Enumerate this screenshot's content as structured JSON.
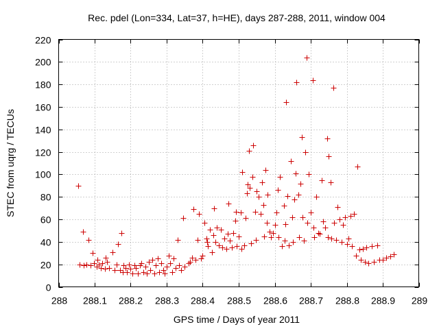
{
  "chart_data": {
    "type": "scatter",
    "title": "Rec. pdel (Lon=334, Lat=37, h=HE), days 287-288, 2011, window 004",
    "xlabel": "GPS time / Days of year 2011",
    "ylabel": "STEC from uqrg / TECUs",
    "xlim": [
      288,
      289
    ],
    "ylim": [
      0,
      220
    ],
    "xticks": [
      288,
      288.1,
      288.2,
      288.3,
      288.4,
      288.5,
      288.6,
      288.7,
      288.8,
      288.9,
      289
    ],
    "xtick_labels": [
      "288",
      "288.1",
      "288.2",
      "288.3",
      "288.4",
      "288.5",
      "288.6",
      "288.7",
      "288.8",
      "288.9",
      "289"
    ],
    "yticks": [
      0,
      20,
      40,
      60,
      80,
      100,
      120,
      140,
      160,
      180,
      200,
      220
    ],
    "ytick_labels": [
      "0",
      "20",
      "40",
      "60",
      "80",
      "100",
      "120",
      "140",
      "160",
      "180",
      "200",
      "220"
    ],
    "grid": true,
    "marker": "+",
    "color": "#cc0000",
    "points": [
      [
        288.055,
        90
      ],
      [
        288.058,
        20
      ],
      [
        288.068,
        49
      ],
      [
        288.07,
        19
      ],
      [
        288.078,
        20
      ],
      [
        288.082,
        42
      ],
      [
        288.088,
        19
      ],
      [
        288.095,
        30
      ],
      [
        288.098,
        21
      ],
      [
        288.105,
        18
      ],
      [
        288.108,
        24
      ],
      [
        288.112,
        20
      ],
      [
        288.118,
        17
      ],
      [
        288.12,
        21
      ],
      [
        288.128,
        16
      ],
      [
        288.13,
        26
      ],
      [
        288.135,
        22
      ],
      [
        288.14,
        17
      ],
      [
        288.15,
        31
      ],
      [
        288.155,
        15
      ],
      [
        288.16,
        20
      ],
      [
        288.165,
        38
      ],
      [
        288.17,
        15
      ],
      [
        288.175,
        48
      ],
      [
        288.178,
        13
      ],
      [
        288.18,
        19
      ],
      [
        288.185,
        17
      ],
      [
        288.19,
        13
      ],
      [
        288.195,
        20
      ],
      [
        288.2,
        16
      ],
      [
        288.205,
        12
      ],
      [
        288.21,
        19
      ],
      [
        288.215,
        17
      ],
      [
        288.22,
        12
      ],
      [
        288.225,
        19
      ],
      [
        288.23,
        21
      ],
      [
        288.235,
        13
      ],
      [
        288.24,
        18
      ],
      [
        288.245,
        12
      ],
      [
        288.25,
        22
      ],
      [
        288.255,
        15
      ],
      [
        288.26,
        24
      ],
      [
        288.265,
        12
      ],
      [
        288.27,
        19
      ],
      [
        288.275,
        25
      ],
      [
        288.28,
        13
      ],
      [
        288.285,
        21
      ],
      [
        288.29,
        15
      ],
      [
        288.295,
        12
      ],
      [
        288.3,
        18
      ],
      [
        288.305,
        28
      ],
      [
        288.31,
        21
      ],
      [
        288.315,
        13
      ],
      [
        288.32,
        25
      ],
      [
        288.325,
        17
      ],
      [
        288.33,
        42
      ],
      [
        288.335,
        19
      ],
      [
        288.34,
        15
      ],
      [
        288.345,
        61
      ],
      [
        288.35,
        18
      ],
      [
        288.36,
        21
      ],
      [
        288.365,
        22
      ],
      [
        288.37,
        26
      ],
      [
        288.375,
        69
      ],
      [
        288.38,
        24
      ],
      [
        288.385,
        42
      ],
      [
        288.39,
        65
      ],
      [
        288.395,
        25
      ],
      [
        288.4,
        28
      ],
      [
        288.405,
        57
      ],
      [
        288.41,
        43
      ],
      [
        288.412,
        40
      ],
      [
        288.415,
        36
      ],
      [
        288.42,
        51
      ],
      [
        288.425,
        31
      ],
      [
        288.43,
        46
      ],
      [
        288.432,
        70
      ],
      [
        288.435,
        40
      ],
      [
        288.44,
        53
      ],
      [
        288.445,
        37
      ],
      [
        288.45,
        51
      ],
      [
        288.455,
        35
      ],
      [
        288.46,
        43
      ],
      [
        288.465,
        34
      ],
      [
        288.47,
        47
      ],
      [
        288.472,
        74
      ],
      [
        288.475,
        41
      ],
      [
        288.48,
        35
      ],
      [
        288.485,
        48
      ],
      [
        288.49,
        59
      ],
      [
        288.492,
        67
      ],
      [
        288.495,
        36
      ],
      [
        288.5,
        45
      ],
      [
        288.505,
        66
      ],
      [
        288.508,
        34
      ],
      [
        288.51,
        102
      ],
      [
        288.515,
        37
      ],
      [
        288.52,
        61
      ],
      [
        288.522,
        83
      ],
      [
        288.525,
        91
      ],
      [
        288.528,
        121
      ],
      [
        288.53,
        88
      ],
      [
        288.535,
        39
      ],
      [
        288.538,
        98
      ],
      [
        288.54,
        126
      ],
      [
        288.545,
        67
      ],
      [
        288.548,
        42
      ],
      [
        288.55,
        85
      ],
      [
        288.555,
        80
      ],
      [
        288.56,
        65
      ],
      [
        288.565,
        93
      ],
      [
        288.568,
        73
      ],
      [
        288.57,
        45
      ],
      [
        288.575,
        104
      ],
      [
        288.578,
        57
      ],
      [
        288.58,
        82
      ],
      [
        288.585,
        49
      ],
      [
        288.59,
        44
      ],
      [
        288.595,
        48
      ],
      [
        288.6,
        55
      ],
      [
        288.605,
        66
      ],
      [
        288.608,
        86
      ],
      [
        288.61,
        44
      ],
      [
        288.615,
        98
      ],
      [
        288.62,
        36
      ],
      [
        288.625,
        72
      ],
      [
        288.628,
        41
      ],
      [
        288.63,
        56
      ],
      [
        288.632,
        164
      ],
      [
        288.635,
        81
      ],
      [
        288.64,
        37
      ],
      [
        288.645,
        112
      ],
      [
        288.648,
        62
      ],
      [
        288.65,
        40
      ],
      [
        288.655,
        78
      ],
      [
        288.658,
        101
      ],
      [
        288.66,
        182
      ],
      [
        288.665,
        82
      ],
      [
        288.668,
        44
      ],
      [
        288.672,
        92
      ],
      [
        288.675,
        133
      ],
      [
        288.678,
        62
      ],
      [
        288.68,
        41
      ],
      [
        288.685,
        120
      ],
      [
        288.688,
        204
      ],
      [
        288.69,
        57
      ],
      [
        288.695,
        100
      ],
      [
        288.7,
        66
      ],
      [
        288.705,
        184
      ],
      [
        288.708,
        53
      ],
      [
        288.71,
        44
      ],
      [
        288.715,
        80
      ],
      [
        288.72,
        48
      ],
      [
        288.725,
        47
      ],
      [
        288.73,
        95
      ],
      [
        288.735,
        58
      ],
      [
        288.74,
        53
      ],
      [
        288.745,
        132
      ],
      [
        288.748,
        44
      ],
      [
        288.75,
        116
      ],
      [
        288.755,
        93
      ],
      [
        288.758,
        43
      ],
      [
        288.762,
        177
      ],
      [
        288.765,
        57
      ],
      [
        288.77,
        42
      ],
      [
        288.775,
        71
      ],
      [
        288.78,
        60
      ],
      [
        288.785,
        40
      ],
      [
        288.79,
        55
      ],
      [
        288.795,
        62
      ],
      [
        288.8,
        38
      ],
      [
        288.805,
        43
      ],
      [
        288.81,
        63
      ],
      [
        288.815,
        36
      ],
      [
        288.82,
        65
      ],
      [
        288.825,
        28
      ],
      [
        288.83,
        107
      ],
      [
        288.835,
        33
      ],
      [
        288.84,
        24
      ],
      [
        288.845,
        34
      ],
      [
        288.85,
        22
      ],
      [
        288.855,
        35
      ],
      [
        288.86,
        21
      ],
      [
        288.87,
        36
      ],
      [
        288.875,
        22
      ],
      [
        288.885,
        37
      ],
      [
        288.89,
        24
      ],
      [
        288.9,
        24
      ],
      [
        288.91,
        26
      ],
      [
        288.92,
        27
      ],
      [
        288.93,
        29
      ]
    ]
  }
}
